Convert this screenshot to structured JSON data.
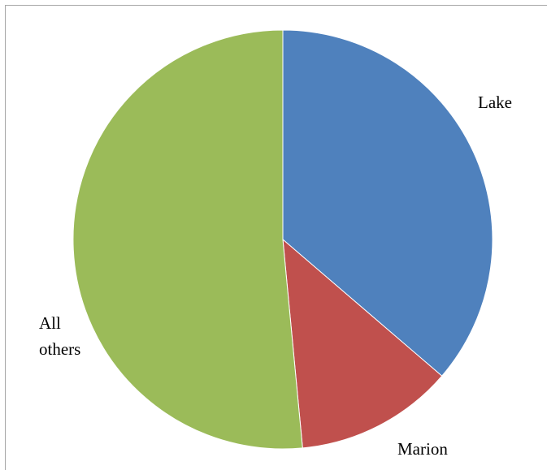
{
  "chart_data": {
    "type": "pie",
    "title": "",
    "slices": [
      {
        "label_lines": [
          "Lake"
        ],
        "value": 36.3,
        "color": "#4f81bd"
      },
      {
        "label_lines": [
          "Marion"
        ],
        "value": 12.2,
        "color": "#c0504d"
      },
      {
        "label_lines": [
          "All",
          "others"
        ],
        "value": 51.5,
        "color": "#9bbb59"
      }
    ],
    "start_angle_deg": 0,
    "direction": "clockwise",
    "legend": "none",
    "slice_border_color": "#ffffff"
  }
}
